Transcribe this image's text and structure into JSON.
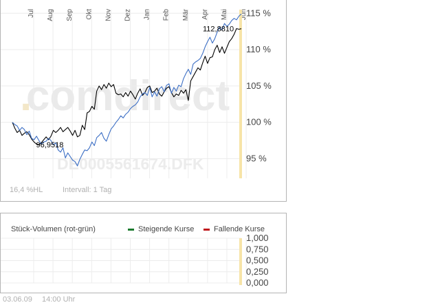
{
  "chart_data": [
    {
      "type": "line",
      "title": "",
      "watermark": "comdirect",
      "watermark_id": "DE0005561674.DFK",
      "months": [
        "Jul",
        "Aug",
        "Sep",
        "Okt",
        "Nov",
        "Dez",
        "Jan",
        "Feb",
        "Mär",
        "Apr",
        "Mai",
        "Jun"
      ],
      "y_ticks": [
        "115 %",
        "110 %",
        "105 %",
        "100 %",
        "95 %"
      ],
      "ylim": [
        92.3,
        115.5
      ],
      "grid": true,
      "series": [
        {
          "color": "#000000",
          "values": [
            100.0,
            99.2,
            98.6,
            98.9,
            98.2,
            98.5,
            98.7,
            98.3,
            97.7,
            97.3,
            97.0,
            96.95,
            97.2,
            97.6,
            98.0,
            97.6,
            98.1,
            98.9,
            98.6,
            98.9,
            99.3,
            98.7,
            99.0,
            99.3,
            98.8,
            98.2,
            98.9,
            98.0,
            98.2,
            99.6,
            99.0,
            101.3,
            101.5,
            102.2,
            101.8,
            104.3,
            105.0,
            104.5,
            105.2,
            104.7,
            105.4,
            104.9,
            105.2,
            104.0,
            103.8,
            103.9,
            103.5,
            104.1,
            103.6,
            104.3,
            103.8,
            103.2,
            104.0,
            104.6,
            103.7,
            104.1,
            104.8,
            105.0,
            104.1,
            104.3,
            104.7,
            103.9,
            103.6,
            104.2,
            104.7,
            104.9,
            104.1,
            103.5,
            103.9,
            103.7,
            104.4,
            104.0,
            104.5,
            103.0,
            105.7,
            106.3,
            106.9,
            107.5,
            107.2,
            108.2,
            109.1,
            108.1,
            108.9,
            109.0,
            110.0,
            110.6,
            109.6,
            110.4,
            109.5,
            110.3,
            111.1,
            111.5,
            112.1,
            112.9,
            112.8,
            112.88
          ]
        },
        {
          "color": "#3b6ec4",
          "values": [
            100.0,
            99.7,
            99.5,
            98.9,
            99.3,
            99.0,
            98.3,
            98.8,
            97.8,
            97.6,
            98.1,
            97.5,
            97.0,
            97.3,
            97.4,
            97.8,
            97.5,
            96.9,
            97.2,
            96.2,
            95.9,
            96.5,
            95.1,
            95.8,
            95.3,
            94.8,
            94.6,
            94.0,
            94.9,
            95.6,
            96.2,
            96.1,
            96.5,
            97.3,
            96.8,
            97.9,
            98.2,
            98.6,
            97.8,
            97.4,
            98.3,
            99.1,
            99.5,
            100.0,
            100.4,
            100.9,
            100.6,
            101.1,
            101.4,
            101.9,
            102.2,
            102.4,
            102.8,
            103.5,
            103.9,
            104.1,
            103.7,
            104.8,
            103.5,
            104.2,
            103.6,
            104.6,
            104.9,
            104.2,
            105.1,
            105.3,
            104.0,
            104.8,
            104.3,
            105.1,
            104.9,
            106.0,
            106.7,
            107.3,
            106.6,
            108.0,
            108.3,
            108.5,
            108.8,
            109.5,
            110.4,
            111.1,
            111.7,
            110.9,
            111.5,
            112.4,
            113.1,
            112.7,
            113.6,
            113.2,
            113.5,
            114.0,
            114.3,
            114.1,
            114.6,
            114.9
          ]
        }
      ],
      "annotations": [
        {
          "text": "96,9518",
          "x_index": 11,
          "value": 96.95
        },
        {
          "text": "112,8810",
          "x_index": 95,
          "value": 112.88
        }
      ],
      "footer_left": "16,4 %HL",
      "footer_right": "Intervall: 1 Tag"
    },
    {
      "type": "bar",
      "title": "Stück-Volumen (rot-grün)",
      "legend": [
        {
          "label": "Steigende Kurse",
          "color": "#1b7a2e"
        },
        {
          "label": "Fallende Kurse",
          "color": "#c0171b"
        }
      ],
      "y_ticks": [
        "1,000",
        "0,750",
        "0,500",
        "0,250",
        "0,000"
      ],
      "ylim": [
        0,
        1
      ],
      "values": []
    }
  ],
  "footer": {
    "date": "03.06.09",
    "time": "14:00 Uhr"
  }
}
